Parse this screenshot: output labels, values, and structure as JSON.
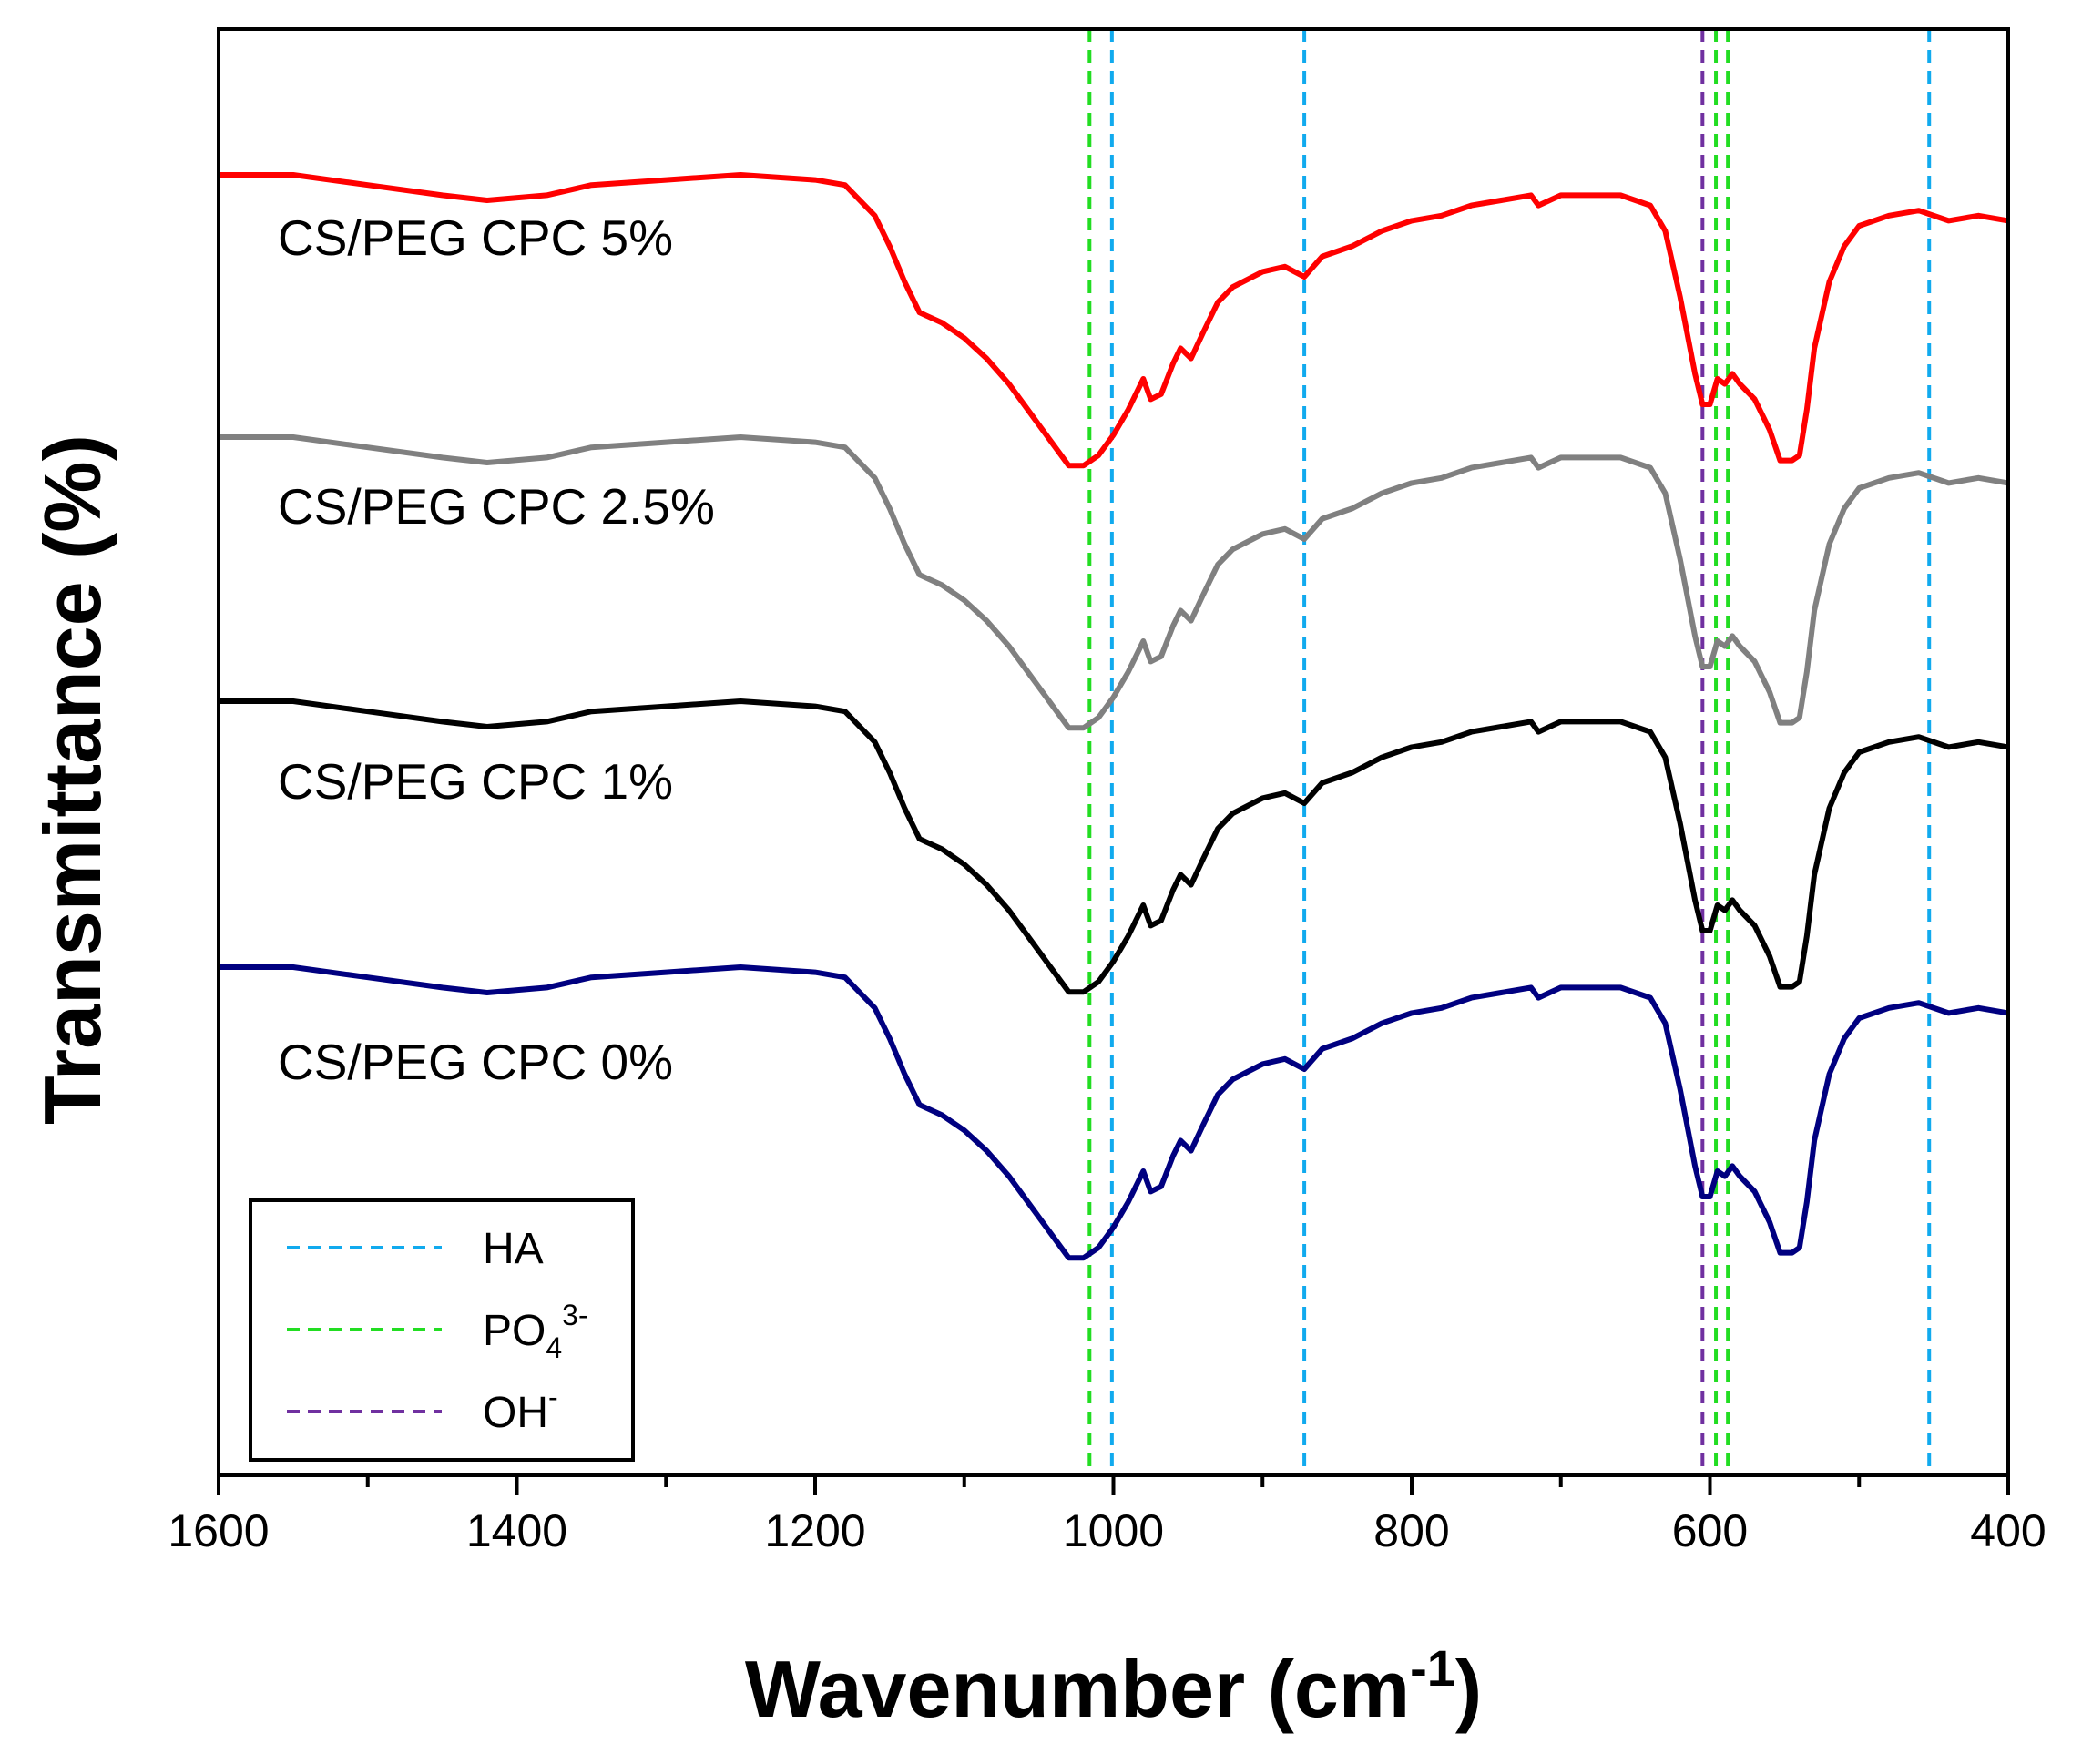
{
  "chart_data": {
    "type": "line",
    "title": "",
    "xlabel": "Wavenumber (cm",
    "xlabel_sup": "-1",
    "xlabel_end": ")",
    "ylabel": "Transmittance (%)",
    "xlim": [
      1600,
      400
    ],
    "x_reversed": true,
    "xticks": [
      1600,
      1400,
      1200,
      1000,
      800,
      600,
      400
    ],
    "y_unit": "arbitrary offset transmittance",
    "series": [
      {
        "name": "CS/PEG CPC 5%",
        "color": "#ff0000",
        "points": [
          [
            1600,
            4.4
          ],
          [
            1550,
            4.4
          ],
          [
            1500,
            4.2
          ],
          [
            1450,
            4.0
          ],
          [
            1420,
            3.9
          ],
          [
            1380,
            4.0
          ],
          [
            1350,
            4.2
          ],
          [
            1300,
            4.3
          ],
          [
            1250,
            4.4
          ],
          [
            1200,
            4.3
          ],
          [
            1180,
            4.2
          ],
          [
            1160,
            3.6
          ],
          [
            1150,
            3.0
          ],
          [
            1140,
            2.3
          ],
          [
            1130,
            1.7
          ],
          [
            1115,
            1.5
          ],
          [
            1100,
            1.2
          ],
          [
            1085,
            0.8
          ],
          [
            1070,
            0.3
          ],
          [
            1055,
            -0.3
          ],
          [
            1040,
            -0.9
          ],
          [
            1030,
            -1.3
          ],
          [
            1020,
            -1.3
          ],
          [
            1010,
            -1.1
          ],
          [
            1000,
            -0.7
          ],
          [
            990,
            -0.2
          ],
          [
            980,
            0.4
          ],
          [
            975,
            0.0
          ],
          [
            968,
            0.1
          ],
          [
            960,
            0.7
          ],
          [
            955,
            1.0
          ],
          [
            948,
            0.8
          ],
          [
            940,
            1.3
          ],
          [
            930,
            1.9
          ],
          [
            920,
            2.2
          ],
          [
            900,
            2.5
          ],
          [
            885,
            2.6
          ],
          [
            872,
            2.4
          ],
          [
            860,
            2.8
          ],
          [
            840,
            3.0
          ],
          [
            820,
            3.3
          ],
          [
            800,
            3.5
          ],
          [
            780,
            3.6
          ],
          [
            760,
            3.8
          ],
          [
            740,
            3.9
          ],
          [
            720,
            4.0
          ],
          [
            715,
            3.8
          ],
          [
            700,
            4.0
          ],
          [
            680,
            4.0
          ],
          [
            660,
            4.0
          ],
          [
            640,
            3.8
          ],
          [
            630,
            3.3
          ],
          [
            620,
            2.0
          ],
          [
            610,
            0.5
          ],
          [
            605,
            -0.1
          ],
          [
            600,
            -0.1
          ],
          [
            595,
            0.4
          ],
          [
            590,
            0.3
          ],
          [
            585,
            0.5
          ],
          [
            580,
            0.3
          ],
          [
            570,
            0.0
          ],
          [
            560,
            -0.6
          ],
          [
            553,
            -1.2
          ],
          [
            545,
            -1.2
          ],
          [
            540,
            -1.1
          ],
          [
            535,
            -0.2
          ],
          [
            530,
            1.0
          ],
          [
            520,
            2.3
          ],
          [
            510,
            3.0
          ],
          [
            500,
            3.4
          ],
          [
            480,
            3.6
          ],
          [
            460,
            3.7
          ],
          [
            440,
            3.5
          ],
          [
            420,
            3.6
          ],
          [
            400,
            3.5
          ]
        ]
      },
      {
        "name": "CS/PEG CPC 2.5%",
        "color": "#808080",
        "points": [
          [
            1600,
            4.4
          ],
          [
            1550,
            4.4
          ],
          [
            1500,
            4.2
          ],
          [
            1450,
            4.0
          ],
          [
            1420,
            3.9
          ],
          [
            1380,
            4.0
          ],
          [
            1350,
            4.2
          ],
          [
            1300,
            4.3
          ],
          [
            1250,
            4.4
          ],
          [
            1200,
            4.3
          ],
          [
            1180,
            4.2
          ],
          [
            1160,
            3.6
          ],
          [
            1150,
            3.0
          ],
          [
            1140,
            2.3
          ],
          [
            1130,
            1.7
          ],
          [
            1115,
            1.5
          ],
          [
            1100,
            1.2
          ],
          [
            1085,
            0.8
          ],
          [
            1070,
            0.3
          ],
          [
            1055,
            -0.3
          ],
          [
            1040,
            -0.9
          ],
          [
            1030,
            -1.3
          ],
          [
            1020,
            -1.3
          ],
          [
            1010,
            -1.1
          ],
          [
            1000,
            -0.7
          ],
          [
            990,
            -0.2
          ],
          [
            980,
            0.4
          ],
          [
            975,
            0.0
          ],
          [
            968,
            0.1
          ],
          [
            960,
            0.7
          ],
          [
            955,
            1.0
          ],
          [
            948,
            0.8
          ],
          [
            940,
            1.3
          ],
          [
            930,
            1.9
          ],
          [
            920,
            2.2
          ],
          [
            900,
            2.5
          ],
          [
            885,
            2.6
          ],
          [
            872,
            2.4
          ],
          [
            860,
            2.8
          ],
          [
            840,
            3.0
          ],
          [
            820,
            3.3
          ],
          [
            800,
            3.5
          ],
          [
            780,
            3.6
          ],
          [
            760,
            3.8
          ],
          [
            740,
            3.9
          ],
          [
            720,
            4.0
          ],
          [
            715,
            3.8
          ],
          [
            700,
            4.0
          ],
          [
            680,
            4.0
          ],
          [
            660,
            4.0
          ],
          [
            640,
            3.8
          ],
          [
            630,
            3.3
          ],
          [
            620,
            2.0
          ],
          [
            610,
            0.5
          ],
          [
            605,
            -0.1
          ],
          [
            600,
            -0.1
          ],
          [
            595,
            0.4
          ],
          [
            590,
            0.3
          ],
          [
            585,
            0.5
          ],
          [
            580,
            0.3
          ],
          [
            570,
            0.0
          ],
          [
            560,
            -0.6
          ],
          [
            553,
            -1.2
          ],
          [
            545,
            -1.2
          ],
          [
            540,
            -1.1
          ],
          [
            535,
            -0.2
          ],
          [
            530,
            1.0
          ],
          [
            520,
            2.3
          ],
          [
            510,
            3.0
          ],
          [
            500,
            3.4
          ],
          [
            480,
            3.6
          ],
          [
            460,
            3.7
          ],
          [
            440,
            3.5
          ],
          [
            420,
            3.6
          ],
          [
            400,
            3.5
          ]
        ]
      },
      {
        "name": "CS/PEG CPC 1%",
        "color": "#000000",
        "points": [
          [
            1600,
            4.4
          ],
          [
            1550,
            4.4
          ],
          [
            1500,
            4.2
          ],
          [
            1450,
            4.0
          ],
          [
            1420,
            3.9
          ],
          [
            1380,
            4.0
          ],
          [
            1350,
            4.2
          ],
          [
            1300,
            4.3
          ],
          [
            1250,
            4.4
          ],
          [
            1200,
            4.3
          ],
          [
            1180,
            4.2
          ],
          [
            1160,
            3.6
          ],
          [
            1150,
            3.0
          ],
          [
            1140,
            2.3
          ],
          [
            1130,
            1.7
          ],
          [
            1115,
            1.5
          ],
          [
            1100,
            1.2
          ],
          [
            1085,
            0.8
          ],
          [
            1070,
            0.3
          ],
          [
            1055,
            -0.3
          ],
          [
            1040,
            -0.9
          ],
          [
            1030,
            -1.3
          ],
          [
            1020,
            -1.3
          ],
          [
            1010,
            -1.1
          ],
          [
            1000,
            -0.7
          ],
          [
            990,
            -0.2
          ],
          [
            980,
            0.4
          ],
          [
            975,
            0.0
          ],
          [
            968,
            0.1
          ],
          [
            960,
            0.7
          ],
          [
            955,
            1.0
          ],
          [
            948,
            0.8
          ],
          [
            940,
            1.3
          ],
          [
            930,
            1.9
          ],
          [
            920,
            2.2
          ],
          [
            900,
            2.5
          ],
          [
            885,
            2.6
          ],
          [
            872,
            2.4
          ],
          [
            860,
            2.8
          ],
          [
            840,
            3.0
          ],
          [
            820,
            3.3
          ],
          [
            800,
            3.5
          ],
          [
            780,
            3.6
          ],
          [
            760,
            3.8
          ],
          [
            740,
            3.9
          ],
          [
            720,
            4.0
          ],
          [
            715,
            3.8
          ],
          [
            700,
            4.0
          ],
          [
            680,
            4.0
          ],
          [
            660,
            4.0
          ],
          [
            640,
            3.8
          ],
          [
            630,
            3.3
          ],
          [
            620,
            2.0
          ],
          [
            610,
            0.5
          ],
          [
            605,
            -0.1
          ],
          [
            600,
            -0.1
          ],
          [
            595,
            0.4
          ],
          [
            590,
            0.3
          ],
          [
            585,
            0.5
          ],
          [
            580,
            0.3
          ],
          [
            570,
            0.0
          ],
          [
            560,
            -0.6
          ],
          [
            553,
            -1.2
          ],
          [
            545,
            -1.2
          ],
          [
            540,
            -1.1
          ],
          [
            535,
            -0.2
          ],
          [
            530,
            1.0
          ],
          [
            520,
            2.3
          ],
          [
            510,
            3.0
          ],
          [
            500,
            3.4
          ],
          [
            480,
            3.6
          ],
          [
            460,
            3.7
          ],
          [
            440,
            3.5
          ],
          [
            420,
            3.6
          ],
          [
            400,
            3.5
          ]
        ]
      },
      {
        "name": "CS/PEG CPC 0%",
        "color": "#000080",
        "points": [
          [
            1600,
            4.4
          ],
          [
            1550,
            4.4
          ],
          [
            1500,
            4.2
          ],
          [
            1450,
            4.0
          ],
          [
            1420,
            3.9
          ],
          [
            1380,
            4.0
          ],
          [
            1350,
            4.2
          ],
          [
            1300,
            4.3
          ],
          [
            1250,
            4.4
          ],
          [
            1200,
            4.3
          ],
          [
            1180,
            4.2
          ],
          [
            1160,
            3.6
          ],
          [
            1150,
            3.0
          ],
          [
            1140,
            2.3
          ],
          [
            1130,
            1.7
          ],
          [
            1115,
            1.5
          ],
          [
            1100,
            1.2
          ],
          [
            1085,
            0.8
          ],
          [
            1070,
            0.3
          ],
          [
            1055,
            -0.3
          ],
          [
            1040,
            -0.9
          ],
          [
            1030,
            -1.3
          ],
          [
            1020,
            -1.3
          ],
          [
            1010,
            -1.1
          ],
          [
            1000,
            -0.7
          ],
          [
            990,
            -0.2
          ],
          [
            980,
            0.4
          ],
          [
            975,
            0.0
          ],
          [
            968,
            0.1
          ],
          [
            960,
            0.7
          ],
          [
            955,
            1.0
          ],
          [
            948,
            0.8
          ],
          [
            940,
            1.3
          ],
          [
            930,
            1.9
          ],
          [
            920,
            2.2
          ],
          [
            900,
            2.5
          ],
          [
            885,
            2.6
          ],
          [
            872,
            2.4
          ],
          [
            860,
            2.8
          ],
          [
            840,
            3.0
          ],
          [
            820,
            3.3
          ],
          [
            800,
            3.5
          ],
          [
            780,
            3.6
          ],
          [
            760,
            3.8
          ],
          [
            740,
            3.9
          ],
          [
            720,
            4.0
          ],
          [
            715,
            3.8
          ],
          [
            700,
            4.0
          ],
          [
            680,
            4.0
          ],
          [
            660,
            4.0
          ],
          [
            640,
            3.8
          ],
          [
            630,
            3.3
          ],
          [
            620,
            2.0
          ],
          [
            610,
            0.5
          ],
          [
            605,
            -0.1
          ],
          [
            600,
            -0.1
          ],
          [
            595,
            0.4
          ],
          [
            590,
            0.3
          ],
          [
            585,
            0.5
          ],
          [
            580,
            0.3
          ],
          [
            570,
            0.0
          ],
          [
            560,
            -0.6
          ],
          [
            553,
            -1.2
          ],
          [
            545,
            -1.2
          ],
          [
            540,
            -1.1
          ],
          [
            535,
            -0.2
          ],
          [
            530,
            1.0
          ],
          [
            520,
            2.3
          ],
          [
            510,
            3.0
          ],
          [
            500,
            3.4
          ],
          [
            480,
            3.6
          ],
          [
            460,
            3.7
          ],
          [
            440,
            3.5
          ],
          [
            420,
            3.6
          ],
          [
            400,
            3.5
          ]
        ]
      }
    ],
    "reference_lines": [
      {
        "group": "PO4",
        "x": 1016,
        "color": "#22dd22"
      },
      {
        "group": "HA",
        "x": 1001,
        "color": "#11aaee"
      },
      {
        "group": "HA",
        "x": 872,
        "color": "#11aaee"
      },
      {
        "group": "OH",
        "x": 605,
        "color": "#7030a0"
      },
      {
        "group": "PO4",
        "x": 596,
        "color": "#22dd22"
      },
      {
        "group": "PO4",
        "x": 588,
        "color": "#22dd22"
      },
      {
        "group": "HA",
        "x": 453,
        "color": "#11aaee"
      }
    ],
    "legend": {
      "position": "bottom-left",
      "entries": [
        {
          "key": "HA",
          "label": "HA",
          "sup": "",
          "sub": "",
          "color": "#11aaee"
        },
        {
          "key": "PO4",
          "label": "PO",
          "sub": "4",
          "sup": "3-",
          "color": "#22dd22"
        },
        {
          "key": "OH",
          "label": "OH",
          "sub": "",
          "sup": "-",
          "color": "#7030a0"
        }
      ]
    }
  }
}
